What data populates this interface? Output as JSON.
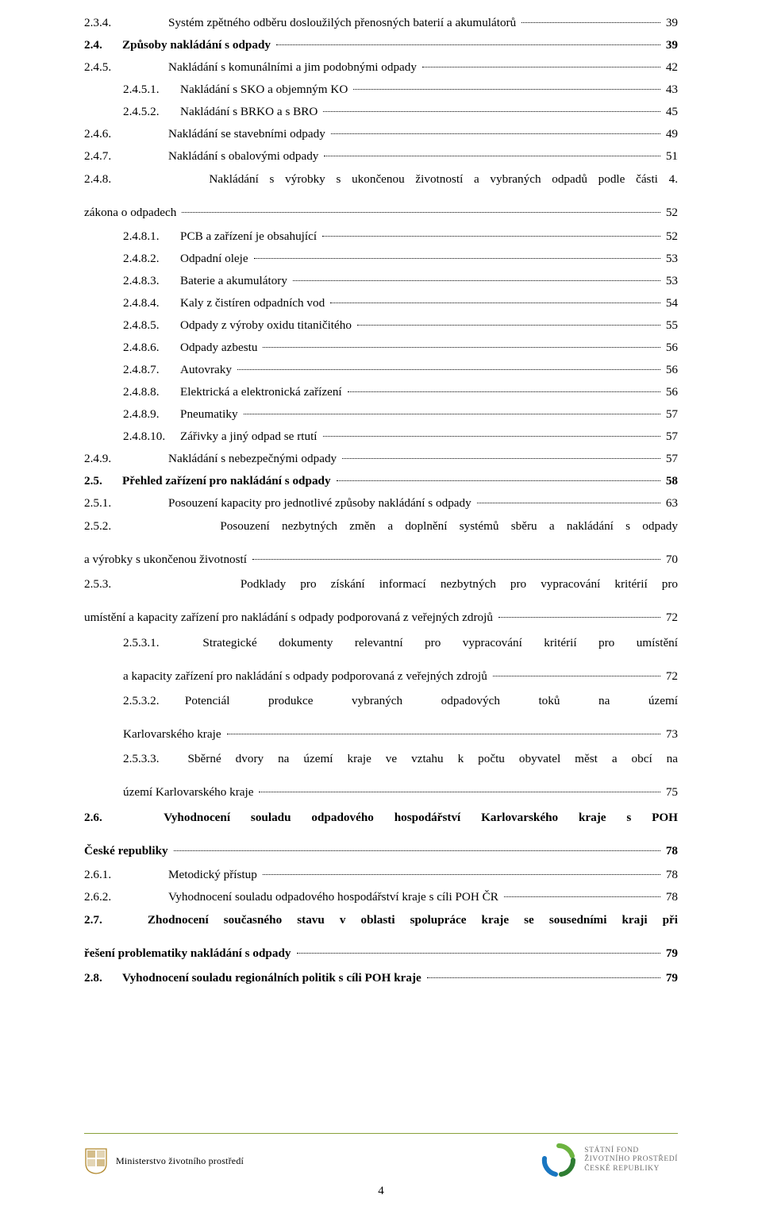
{
  "colors": {
    "text": "#000000",
    "background": "#ffffff",
    "footer_rule": "#8aa03a",
    "sfzp_green": "#6cb33f",
    "sfzp_darkgreen": "#2e7d32",
    "sfzp_blue": "#1976c1",
    "sfzp_grey": "#6f6f6f",
    "mzp_emblem": "#b0872b"
  },
  "page_number": "4",
  "footer": {
    "left_label": "Ministerstvo životního prostředí",
    "right_line1": "STÁTNÍ FOND",
    "right_line2": "ŽIVOTNÍHO PROSTŘEDÍ",
    "right_line3": "ČESKÉ REPUBLIKY"
  },
  "toc": [
    {
      "lvl": "lvA",
      "num": "2.3.4.",
      "label": "Systém zpětného odběru dosloužilých přenosných baterií a akumulátorů",
      "page": "39",
      "bold": false
    },
    {
      "lvl": "lv0",
      "num": "2.4.",
      "label": "Způsoby nakládání s odpady",
      "page": "39",
      "bold": true
    },
    {
      "lvl": "lvA",
      "num": "2.4.5.",
      "label": "Nakládání s komunálními a jim podobnými odpady",
      "page": "42",
      "bold": false
    },
    {
      "lvl": "lv2",
      "num": "2.4.5.1.",
      "label": "Nakládání s SKO a objemným KO",
      "page": "43",
      "bold": false
    },
    {
      "lvl": "lv2",
      "num": "2.4.5.2.",
      "label": "Nakládání s BRKO a s BRO",
      "page": "45",
      "bold": false
    },
    {
      "lvl": "lvA",
      "num": "2.4.6.",
      "label": "Nakládání se stavebními odpady",
      "page": "49",
      "bold": false
    },
    {
      "lvl": "lvA",
      "num": "2.4.7.",
      "label": "Nakládání s obalovými odpady",
      "page": "51",
      "bold": false
    },
    {
      "lvl": "multiA",
      "firstlines": "2.4.8.         Nakládání s výrobky s ukončenou životností a vybraných odpadů podle části 4.",
      "last_label": "zákona o odpadech",
      "page": "52"
    },
    {
      "lvl": "lv2",
      "num": "2.4.8.1.",
      "label": "PCB a zařízení je obsahující",
      "page": "52",
      "bold": false
    },
    {
      "lvl": "lv2",
      "num": "2.4.8.2.",
      "label": "Odpadní oleje",
      "page": "53",
      "bold": false
    },
    {
      "lvl": "lv2",
      "num": "2.4.8.3.",
      "label": "Baterie a akumulátory",
      "page": "53",
      "bold": false
    },
    {
      "lvl": "lv2",
      "num": "2.4.8.4.",
      "label": "Kaly z čistíren odpadních vod",
      "page": "54",
      "bold": false
    },
    {
      "lvl": "lv2",
      "num": "2.4.8.5.",
      "label": "Odpady z výroby oxidu titaničitého",
      "page": "55",
      "bold": false
    },
    {
      "lvl": "lv2",
      "num": "2.4.8.6.",
      "label": "Odpady azbestu",
      "page": "56",
      "bold": false
    },
    {
      "lvl": "lv2",
      "num": "2.4.8.7.",
      "label": "Autovraky",
      "page": "56",
      "bold": false
    },
    {
      "lvl": "lv2",
      "num": "2.4.8.8.",
      "label": "Elektrická a elektronická zařízení",
      "page": "56",
      "bold": false
    },
    {
      "lvl": "lv2",
      "num": "2.4.8.9.",
      "label": "Pneumatiky",
      "page": "57",
      "bold": false
    },
    {
      "lvl": "lv2",
      "num": "2.4.8.10.",
      "label": "Zářivky a jiný odpad se rtutí",
      "page": "57",
      "bold": false
    },
    {
      "lvl": "lvA",
      "num": "2.4.9.",
      "label": "Nakládání s nebezpečnými odpady",
      "page": "57",
      "bold": false
    },
    {
      "lvl": "lv0",
      "num": "2.5.",
      "label": "Přehled zařízení pro nakládání s odpady",
      "page": "58",
      "bold": true
    },
    {
      "lvl": "lvA",
      "num": "2.5.1.",
      "label": "Posouzení kapacity pro jednotlivé způsoby nakládání s odpady",
      "page": "63",
      "bold": false
    },
    {
      "lvl": "multiA",
      "firstlines": "2.5.2.         Posouzení nezbytných změn a doplnění systémů sběru a nakládání s odpady",
      "last_label": "a výrobky s ukončenou životností",
      "page": "70"
    },
    {
      "lvl": "multiA",
      "firstlines": "2.5.3.         Podklady pro získání informací nezbytných pro vypracování kritérií pro",
      "last_label": "umístění a kapacity zařízení pro nakládání s odpady podporovaná z veřejných zdrojů",
      "page": "72"
    },
    {
      "lvl": "multiB",
      "indent": 49,
      "firstlines": "2.5.3.1.  Strategické dokumenty relevantní pro vypracování kritérií pro umístění",
      "last_label": "a kapacity zařízení pro nakládání s odpady podporovaná z veřejných zdrojů",
      "page": "72"
    },
    {
      "lvl": "multiB",
      "indent": 49,
      "firstlines": "2.5.3.2.  Potenciál   produkce   vybraných   odpadových   toků   na   území",
      "last_label": "Karlovarského kraje",
      "page": "73"
    },
    {
      "lvl": "multiB",
      "indent": 49,
      "firstlines": "2.5.3.3.  Sběrné dvory na území kraje ve vztahu k počtu obyvatel měst a obcí na",
      "last_label": "území Karlovarského kraje",
      "page": "75"
    },
    {
      "lvl": "multi0",
      "bold": true,
      "firstlines": "2.6.   Vyhodnocení souladu odpadového hospodářství Karlovarského kraje s POH",
      "last_label": "České republiky",
      "page": "78"
    },
    {
      "lvl": "lvA",
      "num": "2.6.1.",
      "label": "Metodický přístup",
      "page": "78",
      "bold": false
    },
    {
      "lvl": "lvA",
      "num": "2.6.2.",
      "label": "Vyhodnocení souladu odpadového hospodářství kraje s cíli POH ČR",
      "page": "78",
      "bold": false
    },
    {
      "lvl": "multi0",
      "bold": true,
      "firstlines": "2.7.   Zhodnocení současného stavu v oblasti spolupráce kraje se sousedními kraji při",
      "last_label": "řešení problematiky nakládání s odpady",
      "page": "79"
    },
    {
      "lvl": "lv0",
      "num": "2.8.",
      "label": "Vyhodnocení souladu regionálních politik s cíli POH kraje",
      "page": "79",
      "bold": true
    }
  ]
}
